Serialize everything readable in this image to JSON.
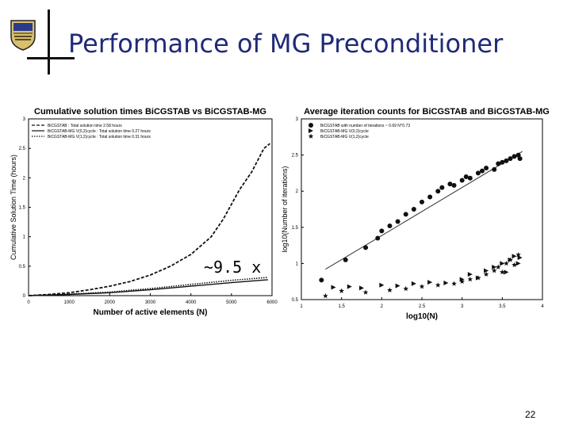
{
  "slide": {
    "title": "Performance of MG Preconditioner",
    "page_number": "22",
    "annotation": "~9.5 x"
  },
  "colors": {
    "title": "#1f2a78",
    "axis": "#000000",
    "marks": "#111111",
    "fit": "#333333"
  },
  "chart_data": [
    {
      "type": "line",
      "title": "Cumulative solution times BiCGSTAB vs BiCGSTAB-MG",
      "xlabel": "Number of active elements (N)",
      "ylabel": "Cumulative Solution Time (hours)",
      "xlim": [
        0,
        6000
      ],
      "ylim": [
        0,
        3
      ],
      "xticks": [
        0,
        1000,
        2000,
        3000,
        4000,
        5000,
        6000
      ],
      "yticks": [
        0,
        0.5,
        1,
        1.5,
        2,
        2.5,
        3
      ],
      "legend": [
        "BiCGSTAB : Total solution time 2.58 hours",
        "BiCGSTAB-MG V(0,2)cycle : Total solution time 0.27 hours",
        "BiCGSTAB-MG V(1,2)cycle : Total solution time 0.31 hours"
      ],
      "series": [
        {
          "name": "BiCGSTAB",
          "style": "dashed",
          "x": [
            0,
            500,
            1000,
            1500,
            2000,
            2500,
            3000,
            3500,
            4000,
            4500,
            4800,
            5000,
            5200,
            5500,
            5800,
            5950
          ],
          "y": [
            0,
            0.02,
            0.05,
            0.1,
            0.16,
            0.24,
            0.35,
            0.5,
            0.7,
            1.0,
            1.3,
            1.55,
            1.8,
            2.1,
            2.5,
            2.58
          ]
        },
        {
          "name": "BiCGSTAB-MG V(0,2)",
          "style": "solid",
          "x": [
            0,
            1000,
            2000,
            3000,
            4000,
            5000,
            5900
          ],
          "y": [
            0,
            0.02,
            0.05,
            0.1,
            0.16,
            0.22,
            0.27
          ]
        },
        {
          "name": "BiCGSTAB-MG V(1,2)",
          "style": "dotted",
          "x": [
            0,
            1000,
            2000,
            3000,
            4000,
            5000,
            5900
          ],
          "y": [
            0,
            0.025,
            0.06,
            0.12,
            0.19,
            0.26,
            0.31
          ]
        }
      ]
    },
    {
      "type": "scatter",
      "title": "Average iteration counts for BiCGSTAB and BiCGSTAB-MG",
      "xlabel": "log10(N)",
      "ylabel": "log10(Number of iterations)",
      "xlim": [
        1,
        4
      ],
      "ylim": [
        0.5,
        3
      ],
      "xticks": [
        1,
        1.5,
        2,
        2.5,
        3,
        3.5,
        4
      ],
      "yticks": [
        0.5,
        1,
        1.5,
        2,
        2.5,
        3
      ],
      "legend": [
        "BiCGSTAB with number of iterations ~ 0.69 N^0.73",
        "BiCGSTAB-MG V(0,2)cycle",
        "BiCGSTAB-MG V(1,2)cycle"
      ],
      "fit": {
        "x": [
          1.3,
          3.75
        ],
        "y": [
          0.92,
          2.55
        ]
      },
      "series": [
        {
          "name": "BiCGSTAB",
          "marker": "circle",
          "x": [
            1.25,
            1.55,
            1.8,
            1.95,
            2.0,
            2.1,
            2.2,
            2.3,
            2.4,
            2.5,
            2.6,
            2.7,
            2.75,
            2.85,
            2.9,
            3.0,
            3.05,
            3.1,
            3.2,
            3.25,
            3.3,
            3.4,
            3.45,
            3.5,
            3.55,
            3.6,
            3.65,
            3.7,
            3.72
          ],
          "y": [
            0.77,
            1.05,
            1.22,
            1.35,
            1.45,
            1.52,
            1.58,
            1.68,
            1.75,
            1.85,
            1.92,
            2.0,
            2.05,
            2.1,
            2.08,
            2.15,
            2.2,
            2.18,
            2.25,
            2.28,
            2.32,
            2.3,
            2.38,
            2.4,
            2.42,
            2.45,
            2.48,
            2.5,
            2.45
          ]
        },
        {
          "name": "BiCGSTAB-MG V(0,2)",
          "marker": "triangle-right",
          "x": [
            1.4,
            1.6,
            1.75,
            2.0,
            2.2,
            2.4,
            2.6,
            2.8,
            3.0,
            3.1,
            3.2,
            3.3,
            3.4,
            3.5,
            3.55,
            3.6,
            3.65,
            3.7,
            3.72
          ],
          "y": [
            0.67,
            0.68,
            0.66,
            0.7,
            0.69,
            0.72,
            0.74,
            0.73,
            0.78,
            0.85,
            0.8,
            0.9,
            0.95,
            1.0,
            0.88,
            1.05,
            1.1,
            1.0,
            1.08
          ]
        },
        {
          "name": "BiCGSTAB-MG V(1,2)",
          "marker": "star",
          "x": [
            1.3,
            1.5,
            1.8,
            2.1,
            2.3,
            2.5,
            2.7,
            2.9,
            3.0,
            3.1,
            3.2,
            3.3,
            3.4,
            3.45,
            3.5,
            3.55,
            3.6,
            3.65,
            3.7
          ],
          "y": [
            0.55,
            0.62,
            0.6,
            0.63,
            0.65,
            0.68,
            0.7,
            0.72,
            0.75,
            0.78,
            0.8,
            0.85,
            0.9,
            0.95,
            0.88,
            1.0,
            1.05,
            0.98,
            1.12
          ]
        }
      ]
    }
  ]
}
